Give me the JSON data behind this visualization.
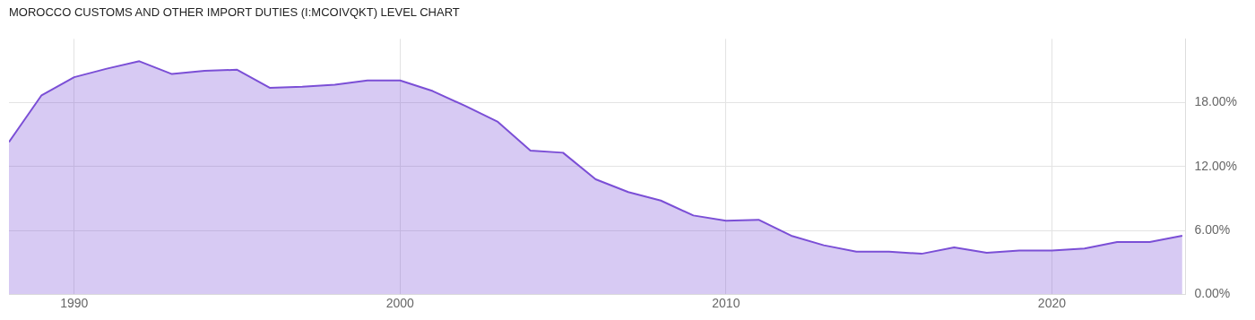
{
  "chart_data": {
    "type": "area",
    "title": "MOROCCO CUSTOMS AND OTHER IMPORT DUTIES (I:MCOIVQKT) LEVEL CHART",
    "x": [
      1988,
      1989,
      1990,
      1991,
      1992,
      1993,
      1994,
      1995,
      1996,
      1997,
      1998,
      1999,
      2000,
      2001,
      2002,
      2003,
      2004,
      2005,
      2006,
      2007,
      2008,
      2009,
      2010,
      2011,
      2012,
      2013,
      2014,
      2015,
      2016,
      2017,
      2018,
      2019,
      2020,
      2021,
      2022,
      2023,
      2024
    ],
    "series": [
      {
        "color": "#7b4fd6",
        "values": [
          14.3,
          18.7,
          20.4,
          21.2,
          21.9,
          20.7,
          21.0,
          21.1,
          19.4,
          19.5,
          19.7,
          20.1,
          20.1,
          19.1,
          17.7,
          16.2,
          13.5,
          13.3,
          10.8,
          9.6,
          8.8,
          7.4,
          6.9,
          7.0,
          5.5,
          4.6,
          4.0,
          4.0,
          3.8,
          4.4,
          3.9,
          4.1,
          4.1,
          4.3,
          4.9,
          4.9,
          5.5
        ]
      }
    ],
    "xlim": [
      1988,
      2024.1
    ],
    "xticks": [
      1990,
      2000,
      2010,
      2020
    ],
    "ylim": [
      0,
      24
    ],
    "yticks": [
      {
        "value": 0,
        "label": "0.00%"
      },
      {
        "value": 6,
        "label": "6.00%"
      },
      {
        "value": 12,
        "label": "12.00%"
      },
      {
        "value": 18,
        "label": "18.00%"
      }
    ],
    "grid": true,
    "legend": false,
    "marker": "none"
  }
}
